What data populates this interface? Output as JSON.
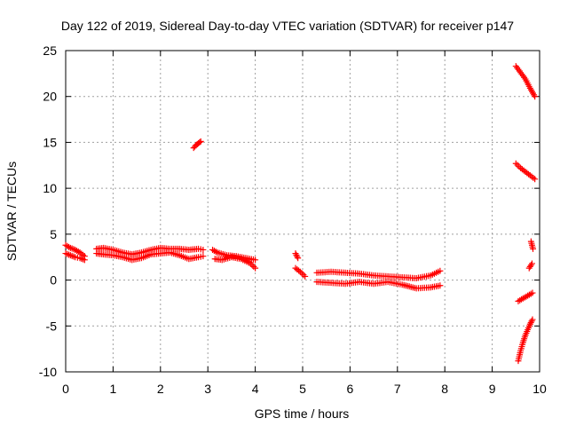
{
  "chart_data": {
    "type": "scatter",
    "title": "Day 122 of 2019, Sidereal Day-to-day VTEC variation (SDTVAR) for receiver p147",
    "xlabel": "GPS time / hours",
    "ylabel": "SDTVAR / TECUs",
    "xlim": [
      0,
      10
    ],
    "ylim": [
      -10,
      25
    ],
    "x_ticks": [
      "0",
      "1",
      "2",
      "3",
      "4",
      "5",
      "6",
      "7",
      "8",
      "9",
      "10"
    ],
    "y_ticks": [
      "-10",
      "-5",
      "0",
      "5",
      "10",
      "15",
      "20",
      "25"
    ],
    "grid": true,
    "marker": "+",
    "colors": {
      "series": "#ff0000",
      "grid": "#a0a0a0",
      "axis": "#000000"
    },
    "segments": [
      {
        "x": [
          0.0,
          0.1,
          0.2,
          0.3,
          0.4
        ],
        "y": [
          3.8,
          3.5,
          3.3,
          3.0,
          2.6
        ]
      },
      {
        "x": [
          0.0,
          0.1,
          0.2,
          0.3,
          0.4
        ],
        "y": [
          2.9,
          2.7,
          2.5,
          2.4,
          2.2
        ]
      },
      {
        "x": [
          0.65,
          0.8,
          1.0,
          1.2,
          1.4,
          1.6,
          1.8,
          2.0,
          2.2,
          2.4,
          2.6,
          2.8,
          2.9
        ],
        "y": [
          3.4,
          3.5,
          3.3,
          3.0,
          2.8,
          3.0,
          3.3,
          3.5,
          3.4,
          3.4,
          3.3,
          3.4,
          3.3
        ]
      },
      {
        "x": [
          0.65,
          0.8,
          1.0,
          1.2,
          1.4,
          1.6,
          1.8,
          2.0,
          2.2,
          2.4,
          2.6,
          2.8,
          2.9
        ],
        "y": [
          2.9,
          2.8,
          2.7,
          2.5,
          2.2,
          2.4,
          2.8,
          2.9,
          3.0,
          2.7,
          2.3,
          2.5,
          2.6
        ]
      },
      {
        "x": [
          2.7,
          2.75,
          2.8,
          2.85
        ],
        "y": [
          14.4,
          14.7,
          14.9,
          15.1
        ]
      },
      {
        "x": [
          3.1,
          3.2,
          3.4,
          3.6,
          3.8,
          4.0
        ],
        "y": [
          3.3,
          3.0,
          2.7,
          2.6,
          2.4,
          2.2
        ]
      },
      {
        "x": [
          3.15,
          3.3,
          3.5,
          3.7,
          3.9,
          4.0
        ],
        "y": [
          2.3,
          2.2,
          2.5,
          2.3,
          1.8,
          1.3
        ]
      },
      {
        "x": [
          4.85,
          4.9
        ],
        "y": [
          2.9,
          2.4
        ]
      },
      {
        "x": [
          4.85,
          4.95,
          5.05
        ],
        "y": [
          1.3,
          0.9,
          0.4
        ]
      },
      {
        "x": [
          5.3,
          5.6,
          5.9,
          6.2,
          6.5,
          6.8,
          7.1,
          7.4,
          7.7,
          7.9
        ],
        "y": [
          0.8,
          0.9,
          0.8,
          0.7,
          0.5,
          0.4,
          0.3,
          0.2,
          0.5,
          1.0
        ]
      },
      {
        "x": [
          5.3,
          5.6,
          5.9,
          6.2,
          6.5,
          6.8,
          7.1,
          7.4,
          7.7,
          7.9
        ],
        "y": [
          -0.2,
          -0.3,
          -0.4,
          -0.2,
          -0.4,
          -0.2,
          -0.5,
          -0.9,
          -0.8,
          -0.6
        ]
      },
      {
        "x": [
          9.5,
          9.6,
          9.7,
          9.8,
          9.9
        ],
        "y": [
          23.3,
          22.6,
          21.9,
          20.9,
          20.0
        ]
      },
      {
        "x": [
          9.5,
          9.6,
          9.7,
          9.8,
          9.9
        ],
        "y": [
          12.7,
          12.2,
          11.8,
          11.4,
          11.0
        ]
      },
      {
        "x": [
          9.82,
          9.86
        ],
        "y": [
          4.2,
          3.4
        ]
      },
      {
        "x": [
          9.78,
          9.84
        ],
        "y": [
          1.3,
          1.8
        ]
      },
      {
        "x": [
          9.55,
          9.65,
          9.75,
          9.85
        ],
        "y": [
          -2.3,
          -2.0,
          -1.7,
          -1.4
        ]
      },
      {
        "x": [
          9.55,
          9.6,
          9.65,
          9.7,
          9.75,
          9.8,
          9.85
        ],
        "y": [
          -8.8,
          -7.7,
          -6.8,
          -6.0,
          -5.4,
          -4.8,
          -4.3
        ]
      }
    ]
  }
}
